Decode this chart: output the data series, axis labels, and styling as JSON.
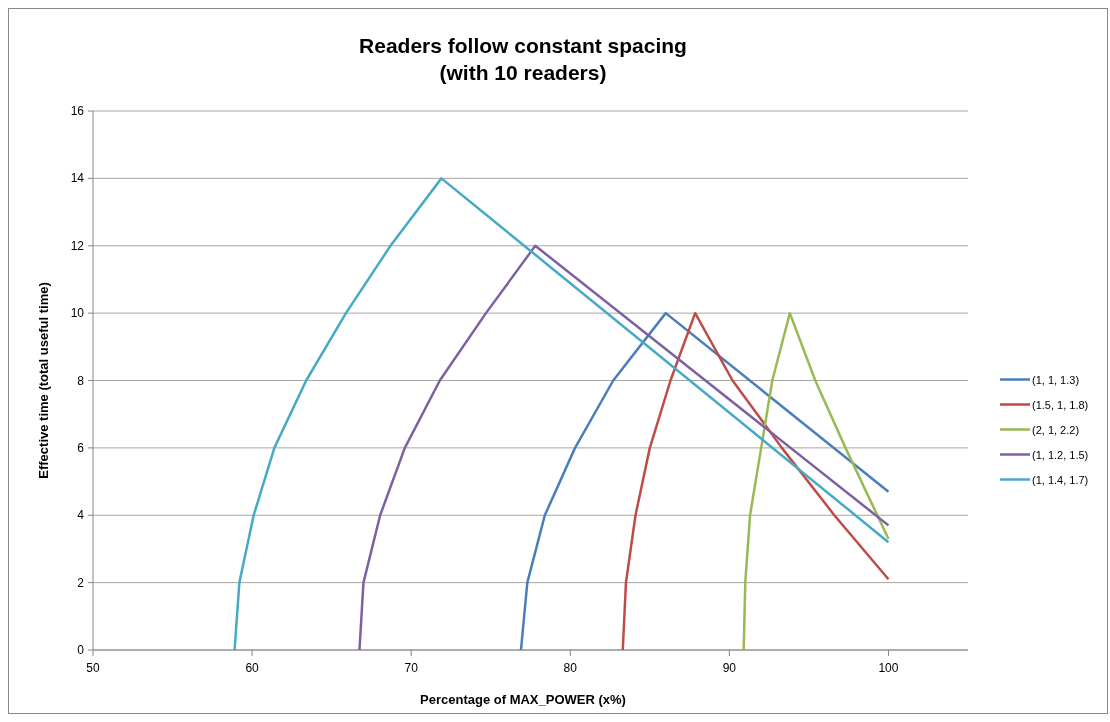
{
  "chart_data": {
    "type": "line",
    "title": "Readers follow constant spacing\n(with 10 readers)",
    "xlabel": "Percentage of MAX_POWER (x%)",
    "ylabel": "Effective time (total useful time)",
    "xlim": [
      50,
      105
    ],
    "xticks": [
      50,
      60,
      70,
      80,
      90,
      100
    ],
    "ylim": [
      0,
      16
    ],
    "yticks": [
      0,
      2,
      4,
      6,
      8,
      10,
      12,
      14,
      16
    ],
    "grid": "y",
    "legend": "right",
    "marker": "none",
    "line_style": "solid",
    "series": [
      {
        "name": "(1, 1, 1.3)",
        "color": "#4a7ebb",
        "x": [
          76.9,
          77.3,
          78.4,
          80.3,
          82.7,
          86.0,
          100
        ],
        "values": [
          0,
          2,
          4,
          6,
          8,
          10,
          4.7
        ]
      },
      {
        "name": "(1.5, 1, 1.8)",
        "color": "#be4b48",
        "x": [
          83.3,
          83.5,
          84.1,
          85.0,
          86.3,
          87.85,
          90.2,
          93.3,
          96.6,
          100
        ],
        "values": [
          0,
          2,
          4,
          6,
          8,
          10,
          8,
          6,
          4,
          2.1
        ]
      },
      {
        "name": "(2, 1, 2.2)",
        "color": "#98b954",
        "x": [
          90.9,
          91.0,
          91.3,
          92.0,
          92.7,
          93.8,
          95.4,
          97.3,
          99.3,
          100
        ],
        "values": [
          0,
          2,
          4,
          6,
          8,
          10,
          8,
          6,
          4,
          3.3
        ]
      },
      {
        "name": "(1, 1.2, 1.5)",
        "color": "#7d60a0",
        "x": [
          66.75,
          67.0,
          68.05,
          69.6,
          71.8,
          74.7,
          77.8,
          100
        ],
        "values": [
          0,
          2,
          4,
          6,
          8,
          10,
          12,
          3.7
        ]
      },
      {
        "name": "(1, 1.4, 1.7)",
        "color": "#46aac5",
        "x": [
          58.9,
          59.2,
          60.1,
          61.4,
          63.4,
          65.9,
          68.7,
          71.9,
          100
        ],
        "values": [
          0,
          2,
          4,
          6,
          8,
          10,
          12,
          14,
          3.2
        ]
      }
    ]
  }
}
